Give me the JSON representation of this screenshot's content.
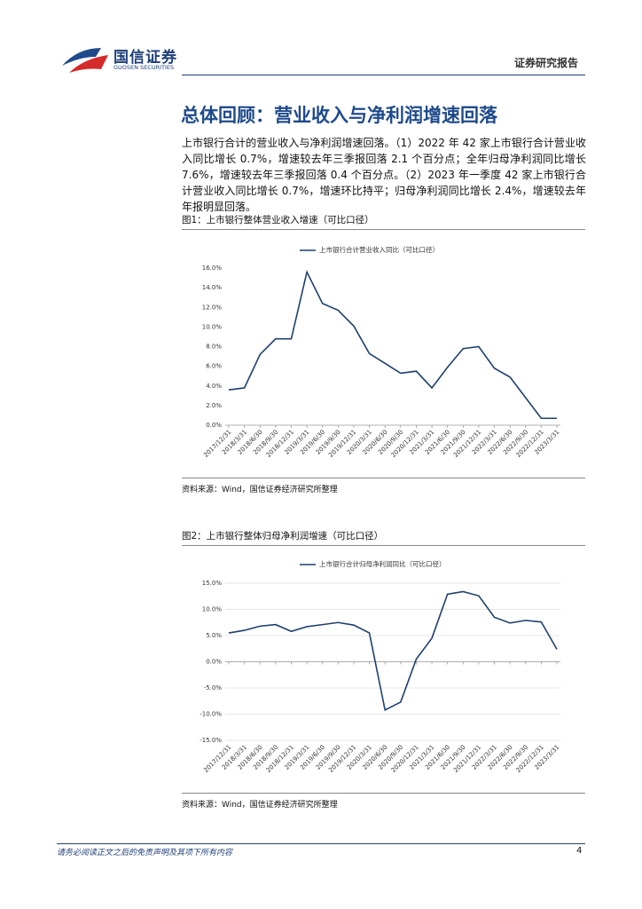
{
  "header": {
    "brand": "国信证券",
    "brand_en": "GUOSEN SECURITIES",
    "report_type": "证券研究报告"
  },
  "title": "总体回顾：营业收入与净利润增速回落",
  "paragraph": "上市银行合计的营业收入与净利润增速回落。（1）2022 年 42 家上市银行合计营业收入同比增长 0.7%，增速较去年三季报回落 2.1 个百分点；全年归母净利润同比增长 7.6%，增速较去年三季报回落 0.4 个百分点。（2）2023 年一季度 42 家上市银行合计营业收入同比增长 0.7%，增速环比持平；归母净利润同比增长 2.4%，增速较去年年报明显回落。",
  "figures": [
    {
      "caption": "图1：上市银行整体营业收入增速（可比口径）",
      "chart": {
        "type": "line",
        "categories": [
          "2017/12/31",
          "2018/3/31",
          "2018/6/30",
          "2018/9/30",
          "2018/12/31",
          "2019/3/31",
          "2019/6/30",
          "2019/9/30",
          "2019/12/31",
          "2020/3/31",
          "2020/6/30",
          "2020/9/30",
          "2020/12/31",
          "2021/3/31",
          "2021/6/30",
          "2021/9/30",
          "2021/12/31",
          "2022/3/31",
          "2022/6/30",
          "2022/9/30",
          "2022/12/31",
          "2023/3/31"
        ],
        "series": [
          {
            "name": "上市银行合计营业收入同比（可比口径）",
            "color": "#1f3f6e",
            "values": [
              3.6,
              3.8,
              7.2,
              8.8,
              8.8,
              15.6,
              12.4,
              11.7,
              10.1,
              7.3,
              6.3,
              5.3,
              5.5,
              3.8,
              5.9,
              7.8,
              8.0,
              5.8,
              4.9,
              2.8,
              0.7,
              0.7
            ]
          }
        ],
        "ylim": [
          0,
          16
        ],
        "yticks": [
          {
            "value": 0,
            "label": "0.0%"
          },
          {
            "value": 2,
            "label": "2.0%"
          },
          {
            "value": 4,
            "label": "4.0%"
          },
          {
            "value": 6,
            "label": "6.0%"
          },
          {
            "value": 8,
            "label": "8.0%"
          },
          {
            "value": 10,
            "label": "10.0%"
          },
          {
            "value": 12,
            "label": "12.0%"
          },
          {
            "value": 14,
            "label": "14.0%"
          },
          {
            "value": 16,
            "label": "16.0%"
          }
        ],
        "grid": false,
        "legend": "top"
      },
      "source": "资料来源：Wind，国信证券经济研究所整理"
    },
    {
      "caption": "图2：上市银行整体归母净利润增速（可比口径）",
      "chart": {
        "type": "line",
        "categories": [
          "2017/12/31",
          "2018/3/31",
          "2018/6/30",
          "2018/9/30",
          "2018/12/31",
          "2019/3/31",
          "2019/6/30",
          "2019/9/30",
          "2019/12/31",
          "2020/3/31",
          "2020/6/30",
          "2020/9/30",
          "2020/12/31",
          "2021/3/31",
          "2021/6/30",
          "2021/9/30",
          "2021/12/31",
          "2022/3/31",
          "2022/6/30",
          "2022/9/30",
          "2022/12/31",
          "2023/3/31"
        ],
        "series": [
          {
            "name": "上市银行合计归母净利润同比（可比口径）",
            "color": "#1f3f6e",
            "values": [
              5.5,
              6.0,
              6.8,
              7.1,
              5.8,
              6.7,
              7.1,
              7.5,
              7.0,
              5.5,
              -9.2,
              -7.7,
              0.5,
              4.5,
              12.9,
              13.4,
              12.6,
              8.5,
              7.4,
              7.9,
              7.6,
              2.4
            ]
          }
        ],
        "ylim": [
          -15,
          15
        ],
        "yticks": [
          {
            "value": -15,
            "label": "-15.0%"
          },
          {
            "value": -10,
            "label": "-10.0%"
          },
          {
            "value": -5,
            "label": "-5.0%"
          },
          {
            "value": 0,
            "label": "0.0%"
          },
          {
            "value": 5,
            "label": "5.0%"
          },
          {
            "value": 10,
            "label": "10.0%"
          },
          {
            "value": 15,
            "label": "15.0%"
          }
        ],
        "grid": true,
        "legend": "top"
      },
      "source": "资料来源：Wind，国信证券经济研究所整理"
    }
  ],
  "footer": {
    "disclaimer": "请务必阅读正文之后的免责声明及其项下所有内容",
    "page": "4"
  }
}
